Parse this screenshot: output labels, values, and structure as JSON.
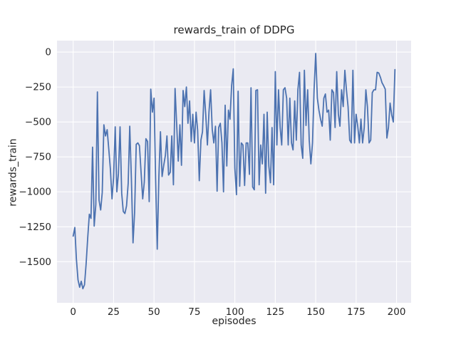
{
  "figure": {
    "background_color": "#ffffff",
    "plot_background_color": "#eaeaf2",
    "grid_color": "#ffffff",
    "text_color": "#262626",
    "line_color": "#4c72b0"
  },
  "chart_data": {
    "type": "line",
    "title": "rewards_train of DDPG",
    "xlabel": "episodes",
    "ylabel": "rewards_train",
    "x_ticks": [
      0,
      25,
      50,
      75,
      100,
      125,
      150,
      175,
      200
    ],
    "y_ticks": [
      0,
      -250,
      -500,
      -750,
      -1000,
      -1250,
      -1500
    ],
    "xlim": [
      -10,
      209
    ],
    "ylim": [
      -1794,
      82
    ],
    "grid": true,
    "legend": "none",
    "series": [
      {
        "name": "rewards_train",
        "color": "#4c72b0",
        "x_start": 0,
        "x_step": 1,
        "values": [
          -1317,
          -1255,
          -1480,
          -1630,
          -1683,
          -1640,
          -1693,
          -1665,
          -1520,
          -1330,
          -1160,
          -1190,
          -680,
          -1245,
          -1090,
          -285,
          -1060,
          -1130,
          -1005,
          -520,
          -600,
          -555,
          -690,
          -835,
          -1050,
          -900,
          -535,
          -1000,
          -870,
          -535,
          -1010,
          -1140,
          -1155,
          -1100,
          -940,
          -530,
          -905,
          -1365,
          -1150,
          -660,
          -650,
          -670,
          -860,
          -1050,
          -930,
          -620,
          -640,
          -1070,
          -265,
          -430,
          -330,
          -910,
          -1410,
          -890,
          -570,
          -890,
          -810,
          -740,
          -600,
          -880,
          -860,
          -600,
          -950,
          -260,
          -510,
          -780,
          -520,
          -810,
          -275,
          -390,
          -250,
          -510,
          -350,
          -640,
          -445,
          -650,
          -430,
          -560,
          -920,
          -630,
          -570,
          -275,
          -450,
          -665,
          -430,
          -270,
          -555,
          -650,
          -530,
          -995,
          -540,
          -510,
          -650,
          -1000,
          -380,
          -815,
          -415,
          -480,
          -240,
          -120,
          -830,
          -1020,
          -280,
          -960,
          -650,
          -665,
          -955,
          -650,
          -650,
          -875,
          -255,
          -965,
          -985,
          -275,
          -270,
          -950,
          -665,
          -800,
          -445,
          -1010,
          -430,
          -815,
          -935,
          -540,
          -950,
          -140,
          -665,
          -270,
          -540,
          -665,
          -270,
          -255,
          -330,
          -665,
          -330,
          -650,
          -700,
          -350,
          -630,
          -270,
          -145,
          -665,
          -760,
          -130,
          -525,
          -270,
          -630,
          -800,
          -650,
          -270,
          -10,
          -330,
          -415,
          -480,
          -530,
          -330,
          -300,
          -430,
          -415,
          -630,
          -270,
          -290,
          -540,
          -140,
          -445,
          -530,
          -270,
          -390,
          -130,
          -270,
          -390,
          -630,
          -650,
          -130,
          -650,
          -445,
          -530,
          -650,
          -480,
          -650,
          -540,
          -270,
          -390,
          -650,
          -630,
          -290,
          -270,
          -270,
          -145,
          -150,
          -180,
          -220,
          -240,
          -265,
          -615,
          -540,
          -365,
          -450,
          -500,
          -125
        ]
      }
    ]
  }
}
